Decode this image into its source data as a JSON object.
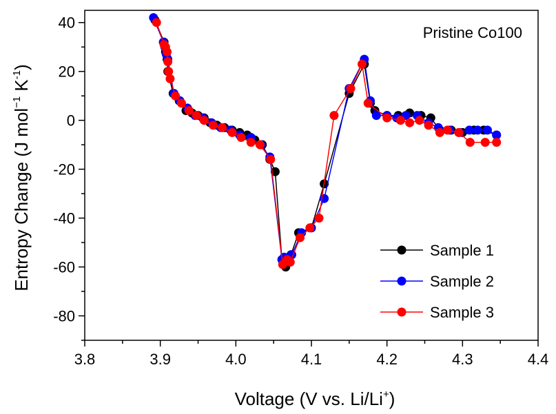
{
  "chart_data": {
    "type": "line",
    "title": "",
    "annotation": "Pristine Co100",
    "xlabel": {
      "main": "Voltage (V vs. Li/Li",
      "sup": "+",
      "end": ")"
    },
    "ylabel": {
      "a": "Entropy Change (J mol",
      "sup1": "−1",
      "b": " K",
      "sup2": "-1",
      "c": ")"
    },
    "xlim": [
      3.8,
      4.4
    ],
    "ylim": [
      -90,
      45
    ],
    "xticks": [
      3.8,
      3.9,
      4.0,
      4.1,
      4.2,
      4.3,
      4.4
    ],
    "xtick_labels": [
      "3.8",
      "3.9",
      "4.0",
      "4.1",
      "4.2",
      "4.3",
      "4.4"
    ],
    "yticks": [
      40,
      20,
      0,
      -20,
      -40,
      -60,
      -80
    ],
    "ytick_labels": [
      "40",
      "20",
      "0",
      "-20",
      "-40",
      "-60",
      "-80"
    ],
    "grid": false,
    "legend_position": "bottom-right",
    "series": [
      {
        "name": "Sample 1",
        "color": "#000000",
        "x": [
          3.893,
          3.905,
          3.907,
          3.909,
          3.91,
          3.917,
          3.925,
          3.934,
          3.942,
          3.95,
          3.958,
          3.966,
          3.975,
          3.985,
          3.995,
          4.005,
          4.015,
          4.025,
          4.035,
          4.045,
          4.052,
          4.061,
          4.066,
          4.073,
          4.083,
          4.1,
          4.117,
          4.15,
          4.17,
          4.178,
          4.184,
          4.2,
          4.215,
          4.23,
          4.245,
          4.258,
          4.27,
          4.285,
          4.3,
          4.315,
          4.328,
          4.345
        ],
        "y": [
          41,
          32,
          28,
          25,
          20,
          11,
          8,
          4,
          3,
          2,
          1,
          -1,
          -2,
          -3,
          -4,
          -5,
          -6,
          -8,
          -10,
          -16,
          -21,
          -57,
          -60,
          -55,
          -46,
          -44,
          -26,
          11,
          23,
          7,
          4,
          2,
          2,
          3,
          2,
          1,
          -4,
          -4,
          -5,
          -4,
          -4,
          -6
        ]
      },
      {
        "name": "Sample 2",
        "color": "#0000ff",
        "x": [
          3.891,
          3.904,
          3.906,
          3.908,
          3.91,
          3.918,
          3.926,
          3.936,
          3.946,
          3.956,
          3.968,
          3.98,
          3.993,
          4.005,
          4.02,
          4.033,
          4.045,
          4.061,
          4.064,
          4.074,
          4.087,
          4.1,
          4.117,
          4.15,
          4.17,
          4.178,
          4.186,
          4.2,
          4.213,
          4.225,
          4.24,
          4.255,
          4.268,
          4.283,
          4.296,
          4.309,
          4.32,
          4.333,
          4.345
        ],
        "y": [
          42,
          32,
          30,
          27,
          25,
          11,
          8,
          5,
          2,
          1,
          -1,
          -3,
          -4,
          -6,
          -7,
          -10,
          -15,
          -57,
          -56,
          -55,
          -46,
          -44,
          -32,
          13,
          25,
          8,
          2,
          2,
          1,
          2,
          2,
          -1,
          -3,
          -4,
          -5,
          -4,
          -4,
          -4,
          -6
        ]
      },
      {
        "name": "Sample 3",
        "color": "#ff0000",
        "x": [
          3.895,
          3.905,
          3.907,
          3.909,
          3.91,
          3.911,
          3.913,
          3.92,
          3.928,
          3.938,
          3.948,
          3.958,
          3.97,
          3.982,
          3.995,
          4.007,
          4.02,
          4.032,
          4.046,
          4.062,
          4.068,
          4.072,
          4.085,
          4.098,
          4.11,
          4.13,
          4.152,
          4.167,
          4.175,
          4.2,
          4.218,
          4.23,
          4.243,
          4.255,
          4.27,
          4.28,
          4.295,
          4.31,
          4.33,
          4.345
        ],
        "y": [
          40,
          31,
          30,
          28,
          24,
          20,
          17,
          10,
          7,
          4,
          2,
          0,
          -2,
          -3,
          -5,
          -7,
          -9,
          -10,
          -16,
          -59,
          -57,
          -58,
          -48,
          -44,
          -40,
          2,
          13,
          23,
          7,
          1,
          0,
          -1,
          0,
          -2,
          -5,
          -4,
          -5,
          -9,
          -9,
          -9
        ]
      }
    ]
  }
}
